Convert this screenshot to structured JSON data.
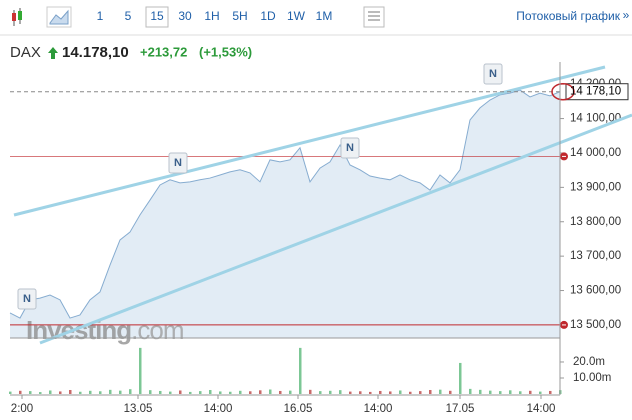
{
  "toolbar": {
    "intervals": [
      "1",
      "5",
      "15",
      "30",
      "1H",
      "5H",
      "1D",
      "1W",
      "1M"
    ],
    "selected_index": 2,
    "streaming_link": "Потоковый график",
    "more": "»"
  },
  "header": {
    "symbol": "DAX",
    "price": "14.178,10",
    "change": "+213,72",
    "change_pct": "(+1,53%)"
  },
  "chart_data": {
    "type": "area",
    "color": "#86acd0",
    "fill": "#e2ecf5",
    "x": [
      0,
      1,
      2,
      3,
      4,
      5,
      6,
      7,
      8,
      9,
      10,
      11,
      12,
      13,
      14,
      15,
      16,
      17,
      18,
      19,
      20,
      21,
      22,
      23,
      24,
      25,
      26,
      27,
      28,
      29,
      30,
      31,
      32,
      33,
      34,
      35,
      36,
      37,
      38,
      39,
      40,
      41,
      42,
      43,
      44,
      45,
      46,
      47,
      48,
      49,
      50,
      51,
      52,
      53,
      54,
      55
    ],
    "values": [
      13535,
      13520,
      13573,
      13578,
      13587,
      13573,
      13520,
      13529,
      13573,
      13596,
      13674,
      13747,
      13770,
      13820,
      13863,
      13907,
      13922,
      13913,
      13916,
      13922,
      13927,
      13936,
      13945,
      13951,
      13942,
      13916,
      13980,
      13974,
      13980,
      14015,
      13916,
      13956,
      13974,
      14023,
      13965,
      13951,
      13933,
      13927,
      13922,
      13936,
      13922,
      13913,
      13892,
      13936,
      13913,
      13951,
      14096,
      14131,
      14154,
      14169,
      14174,
      14183,
      14163,
      14174,
      14166,
      14178.1
    ],
    "xlim": [
      0,
      55
    ],
    "xticks": [
      {
        "value": 1.2,
        "label": "2:00"
      },
      {
        "value": 12.8,
        "label": "13.05"
      },
      {
        "value": 20.8,
        "label": "14:00"
      },
      {
        "value": 28.8,
        "label": "16.05"
      },
      {
        "value": 36.8,
        "label": "14:00"
      },
      {
        "value": 45,
        "label": "17.05"
      },
      {
        "value": 53.1,
        "label": "14:00"
      }
    ],
    "ylim": [
      13462,
      14343
    ],
    "yticks": [
      {
        "value": 13500,
        "label": "13 500,00"
      },
      {
        "value": 13600,
        "label": "13 600,00"
      },
      {
        "value": 13700,
        "label": "13 700,00"
      },
      {
        "value": 13800,
        "label": "13 800,00"
      },
      {
        "value": 13900,
        "label": "13 900,00"
      },
      {
        "value": 14000,
        "label": "14 000,00"
      },
      {
        "value": 14100,
        "label": "14 100,00"
      },
      {
        "value": 14200,
        "label": "14 200,00"
      }
    ],
    "last_price": {
      "value": 14178.1,
      "label": "14 178,10"
    },
    "levels": [
      13990,
      13500
    ],
    "level_color": "#c0282d",
    "volume": {
      "values": [
        1500000,
        2000000,
        1800000,
        1200000,
        2200000,
        1600000,
        2500000,
        1400000,
        2000000,
        1700000,
        2600000,
        2100000,
        3000000,
        28800000,
        2400000,
        1900000,
        1500000,
        2200000,
        1300000,
        1800000,
        2500000,
        1600000,
        1400000,
        2000000,
        1700000,
        2300000,
        2800000,
        1900000,
        2100000,
        28800000,
        2600000,
        1800000,
        2000000,
        2400000,
        1500000,
        1700000,
        1300000,
        1900000,
        1600000,
        2200000,
        1400000,
        1800000,
        2500000,
        2700000,
        2000000,
        19400000,
        3200000,
        2600000,
        2100000,
        1800000,
        2300000,
        1700000,
        2000000,
        1500000,
        1900000,
        2400000
      ],
      "ylim": [
        0,
        30600000
      ],
      "yticks": [
        {
          "value": 20000000,
          "label": "20.0m"
        },
        {
          "value": 10000000,
          "label": "10.00m"
        }
      ],
      "up_color": "#7cc795",
      "down_color": "#c96a6a"
    },
    "news_markers": [
      "N",
      "N",
      "N",
      "N"
    ],
    "watermark": [
      "Investing",
      ".com"
    ]
  }
}
